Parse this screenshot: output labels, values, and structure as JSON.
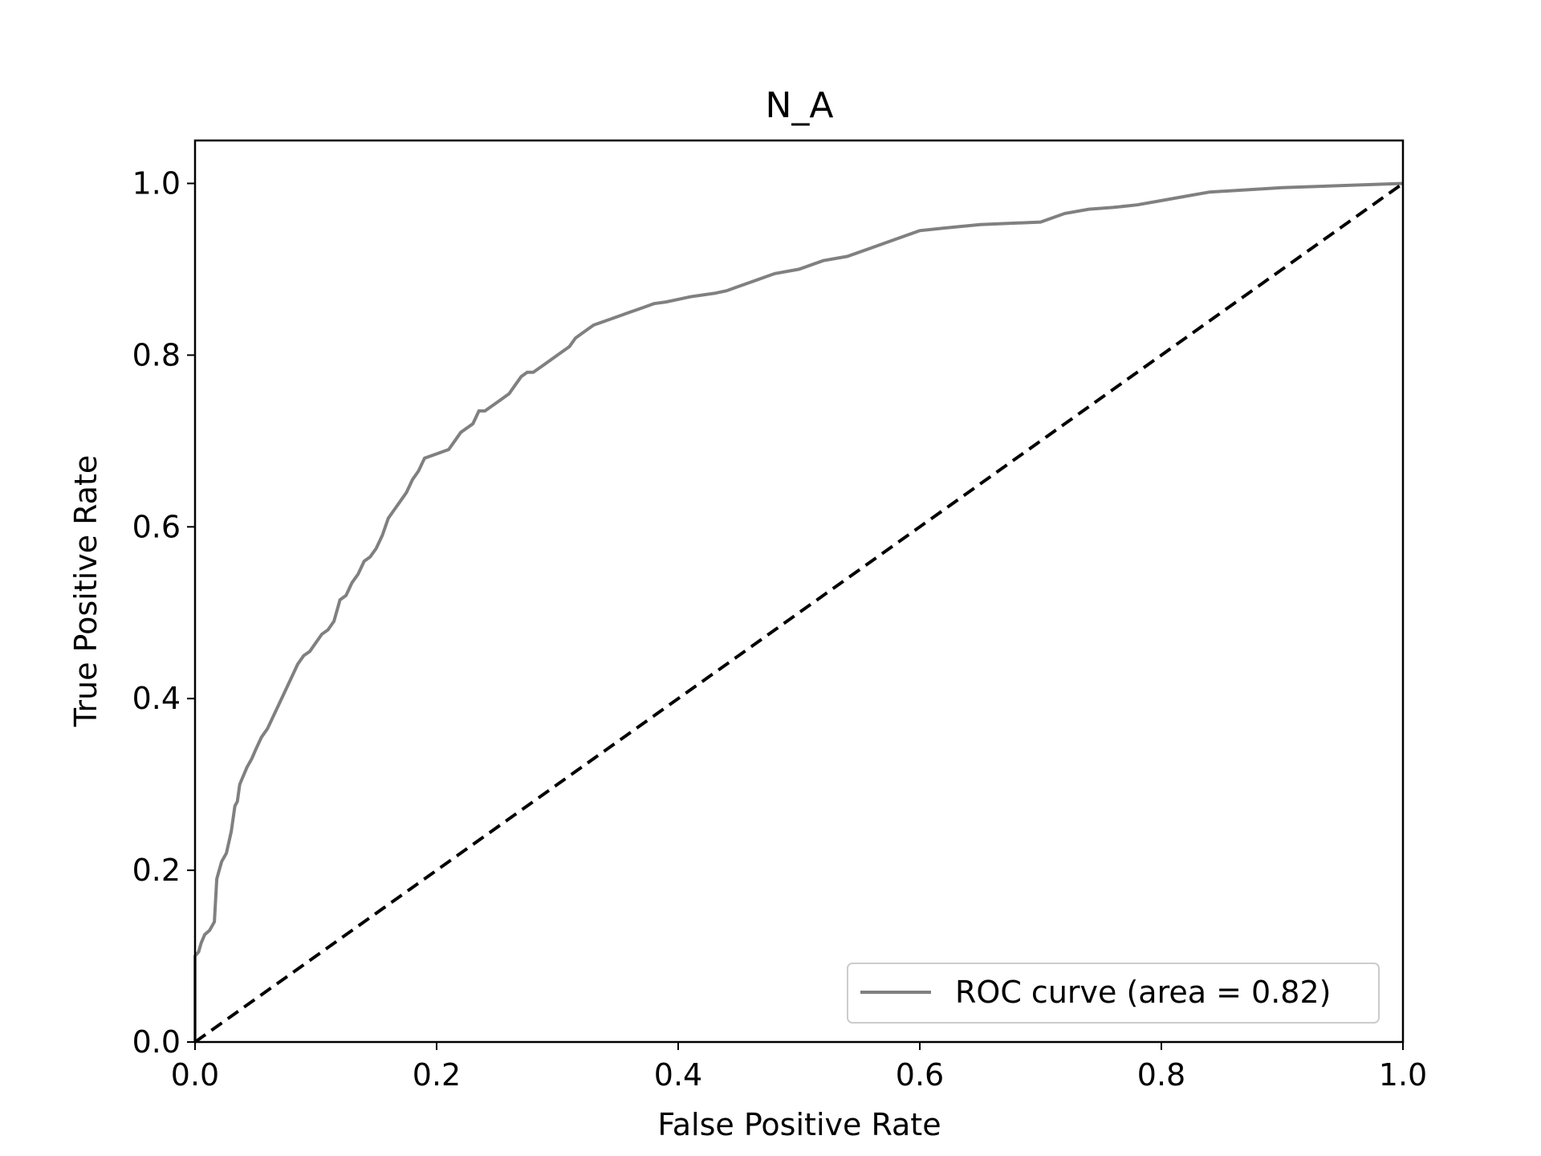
{
  "chart_data": {
    "type": "line",
    "title": "N_A",
    "xlabel": "False Positive Rate",
    "ylabel": "True Positive Rate",
    "xlim": [
      0.0,
      1.0
    ],
    "ylim": [
      0.0,
      1.05
    ],
    "xticks": [
      0.0,
      0.2,
      0.4,
      0.6,
      0.8,
      1.0
    ],
    "xtick_labels": [
      "0.0",
      "0.2",
      "0.4",
      "0.6",
      "0.8",
      "1.0"
    ],
    "yticks": [
      0.0,
      0.2,
      0.4,
      0.6,
      0.8,
      1.0
    ],
    "ytick_labels": [
      "0.0",
      "0.2",
      "0.4",
      "0.6",
      "0.8",
      "1.0"
    ],
    "grid": false,
    "legend_position": "lower right",
    "series": [
      {
        "name": "ROC curve (area = 0.82)",
        "color": "#808080",
        "style": "solid",
        "x": [
          0.0,
          0.0,
          0.003,
          0.005,
          0.008,
          0.012,
          0.016,
          0.018,
          0.02,
          0.022,
          0.026,
          0.03,
          0.033,
          0.035,
          0.037,
          0.04,
          0.043,
          0.047,
          0.05,
          0.055,
          0.06,
          0.065,
          0.07,
          0.075,
          0.08,
          0.085,
          0.09,
          0.095,
          0.1,
          0.105,
          0.11,
          0.115,
          0.12,
          0.125,
          0.13,
          0.135,
          0.14,
          0.145,
          0.15,
          0.155,
          0.16,
          0.165,
          0.17,
          0.175,
          0.18,
          0.185,
          0.19,
          0.2,
          0.21,
          0.215,
          0.22,
          0.23,
          0.235,
          0.24,
          0.25,
          0.26,
          0.265,
          0.27,
          0.275,
          0.28,
          0.29,
          0.3,
          0.31,
          0.315,
          0.32,
          0.325,
          0.33,
          0.34,
          0.35,
          0.36,
          0.37,
          0.38,
          0.39,
          0.4,
          0.41,
          0.42,
          0.43,
          0.44,
          0.45,
          0.46,
          0.47,
          0.48,
          0.5,
          0.52,
          0.54,
          0.56,
          0.58,
          0.6,
          0.62,
          0.65,
          0.7,
          0.72,
          0.74,
          0.76,
          0.78,
          0.8,
          0.82,
          0.84,
          0.9,
          1.0
        ],
        "y": [
          0.0,
          0.1,
          0.105,
          0.115,
          0.125,
          0.13,
          0.14,
          0.19,
          0.2,
          0.21,
          0.22,
          0.245,
          0.275,
          0.28,
          0.3,
          0.31,
          0.32,
          0.33,
          0.34,
          0.355,
          0.365,
          0.38,
          0.395,
          0.41,
          0.425,
          0.44,
          0.45,
          0.455,
          0.465,
          0.475,
          0.48,
          0.49,
          0.515,
          0.52,
          0.535,
          0.545,
          0.56,
          0.565,
          0.575,
          0.59,
          0.61,
          0.62,
          0.63,
          0.64,
          0.655,
          0.665,
          0.68,
          0.685,
          0.69,
          0.7,
          0.71,
          0.72,
          0.735,
          0.735,
          0.745,
          0.755,
          0.765,
          0.775,
          0.78,
          0.78,
          0.79,
          0.8,
          0.81,
          0.82,
          0.825,
          0.83,
          0.835,
          0.84,
          0.845,
          0.85,
          0.855,
          0.86,
          0.862,
          0.865,
          0.868,
          0.87,
          0.872,
          0.875,
          0.88,
          0.885,
          0.89,
          0.895,
          0.9,
          0.91,
          0.915,
          0.925,
          0.935,
          0.945,
          0.948,
          0.952,
          0.955,
          0.965,
          0.97,
          0.972,
          0.975,
          0.98,
          0.985,
          0.99,
          0.995,
          1.0
        ]
      },
      {
        "name": "",
        "color": "#000000",
        "style": "dashed",
        "x": [
          0.0,
          1.0
        ],
        "y": [
          0.0,
          1.0
        ]
      }
    ]
  }
}
